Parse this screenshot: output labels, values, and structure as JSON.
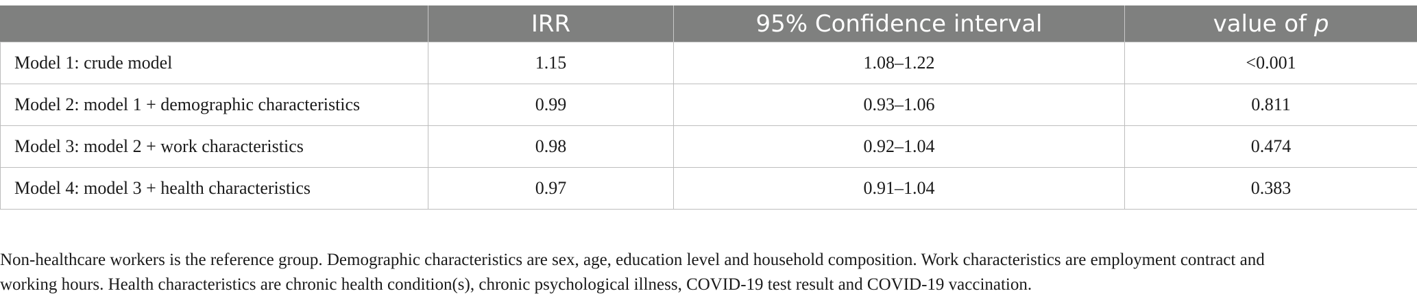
{
  "table": {
    "headers": {
      "col1": "",
      "col2": "IRR",
      "col3": "95% Confidence interval",
      "col4_prefix": "value of ",
      "col4_italic": "p"
    },
    "rows": [
      {
        "label": "Model 1: crude model",
        "irr": "1.15",
        "ci": "1.08–1.22",
        "p": "<0.001"
      },
      {
        "label": "Model 2: model 1 + demographic characteristics",
        "irr": "0.99",
        "ci": "0.93–1.06",
        "p": "0.811"
      },
      {
        "label": "Model 3: model 2 + work characteristics",
        "irr": "0.98",
        "ci": "0.92–1.04",
        "p": "0.474"
      },
      {
        "label": "Model 4: model 3 + health characteristics",
        "irr": "0.97",
        "ci": "0.91–1.04",
        "p": "0.383"
      }
    ]
  },
  "footnote": {
    "line1": "Non-healthcare workers is the reference group. Demographic characteristics are sex, age, education level and household composition. Work characteristics are employment contract and",
    "line2": "working hours. Health characteristics are chronic health condition(s), chronic psychological illness, COVID-19 test result and COVID-19 vaccination."
  }
}
